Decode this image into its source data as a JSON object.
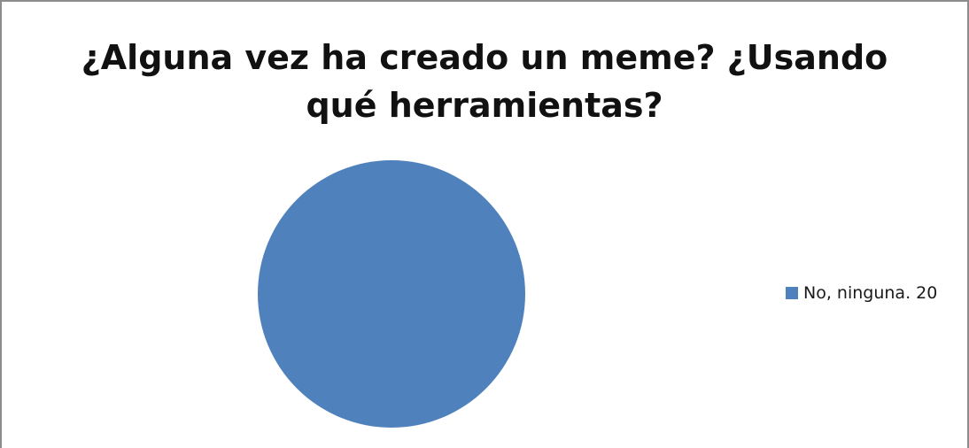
{
  "chart_data": {
    "type": "pie",
    "title_lines": [
      "¿Alguna vez ha creado un meme? ¿Usando",
      "qué herramientas?"
    ],
    "series": [
      {
        "categories": [
          "No, ninguna."
        ],
        "values": [
          20
        ],
        "colors": [
          "#4f81bd"
        ]
      }
    ],
    "legend": {
      "placement": "right",
      "entries": [
        {
          "label": "No, ninguna. 20",
          "color": "#4f81bd"
        }
      ]
    }
  }
}
